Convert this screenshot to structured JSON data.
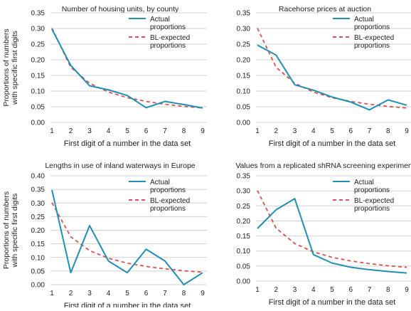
{
  "figure": {
    "colors": {
      "actual": "#1f8fb3",
      "expected": "#d9534f",
      "grid": "#d0d0d0",
      "text": "#222222"
    }
  },
  "chart_data": [
    {
      "type": "line",
      "title": "Number of housing units, by county",
      "xlabel": "First digit of a number in the data set",
      "ylabel": "Proportions of numbers with specific first digits",
      "x": [
        1,
        2,
        3,
        4,
        5,
        6,
        7,
        8,
        9
      ],
      "ylim": [
        0,
        0.35
      ],
      "yticks": [
        0.0,
        0.05,
        0.1,
        0.15,
        0.2,
        0.25,
        0.3,
        0.35
      ],
      "grid": true,
      "legend": "top-right",
      "series": [
        {
          "name": "Actual proportions",
          "style": "solid",
          "values": [
            0.298,
            0.182,
            0.117,
            0.104,
            0.086,
            0.047,
            0.067,
            0.057,
            0.046
          ]
        },
        {
          "name": "BL-expected proportions",
          "style": "dashed",
          "values": [
            0.301,
            0.176,
            0.125,
            0.097,
            0.079,
            0.067,
            0.058,
            0.051,
            0.046
          ]
        }
      ]
    },
    {
      "type": "line",
      "title": "Racehorse prices at auction",
      "xlabel": "First digit of a number in the data set",
      "ylabel": "",
      "x": [
        1,
        2,
        3,
        4,
        5,
        6,
        7,
        8,
        9
      ],
      "ylim": [
        0,
        0.35
      ],
      "yticks": [
        0.0,
        0.05,
        0.1,
        0.15,
        0.2,
        0.25,
        0.3,
        0.35
      ],
      "grid": true,
      "legend": "top-right",
      "series": [
        {
          "name": "Actual proportions",
          "style": "solid",
          "values": [
            0.247,
            0.215,
            0.12,
            0.103,
            0.081,
            0.065,
            0.04,
            0.072,
            0.055
          ]
        },
        {
          "name": "BL-expected proportions",
          "style": "dashed",
          "values": [
            0.301,
            0.176,
            0.125,
            0.097,
            0.079,
            0.067,
            0.058,
            0.051,
            0.046
          ]
        }
      ]
    },
    {
      "type": "line",
      "title": "Lengths in use of inland waterways in Europe",
      "xlabel": "First digit of a number in the data set",
      "ylabel": "Proportions of numbers with specific first digits",
      "x": [
        1,
        2,
        3,
        4,
        5,
        6,
        7,
        8,
        9
      ],
      "ylim": [
        0,
        0.4
      ],
      "yticks": [
        0.0,
        0.05,
        0.1,
        0.15,
        0.2,
        0.25,
        0.3,
        0.35,
        0.4
      ],
      "grid": true,
      "legend": "top-right",
      "series": [
        {
          "name": "Actual proportions",
          "style": "solid",
          "values": [
            0.348,
            0.044,
            0.217,
            0.087,
            0.044,
            0.13,
            0.087,
            0.0,
            0.044
          ]
        },
        {
          "name": "BL-expected proportions",
          "style": "dashed",
          "values": [
            0.301,
            0.176,
            0.125,
            0.097,
            0.079,
            0.067,
            0.058,
            0.051,
            0.046
          ]
        }
      ]
    },
    {
      "type": "line",
      "title": "Values from a replicated shRNA screening experiment",
      "xlabel": "First digit of a number in the data set",
      "ylabel": "",
      "x": [
        1,
        2,
        3,
        4,
        5,
        6,
        7,
        8,
        9
      ],
      "ylim": [
        0,
        0.35
      ],
      "yticks": [
        0.0,
        0.05,
        0.1,
        0.15,
        0.2,
        0.25,
        0.3,
        0.35
      ],
      "grid": true,
      "legend": "top-right",
      "series": [
        {
          "name": "Actual proportions",
          "style": "solid",
          "values": [
            0.175,
            0.237,
            0.274,
            0.088,
            0.06,
            0.046,
            0.038,
            0.032,
            0.027
          ]
        },
        {
          "name": "BL-expected proportions",
          "style": "dashed",
          "values": [
            0.301,
            0.176,
            0.125,
            0.097,
            0.079,
            0.067,
            0.058,
            0.051,
            0.046
          ]
        }
      ]
    }
  ]
}
